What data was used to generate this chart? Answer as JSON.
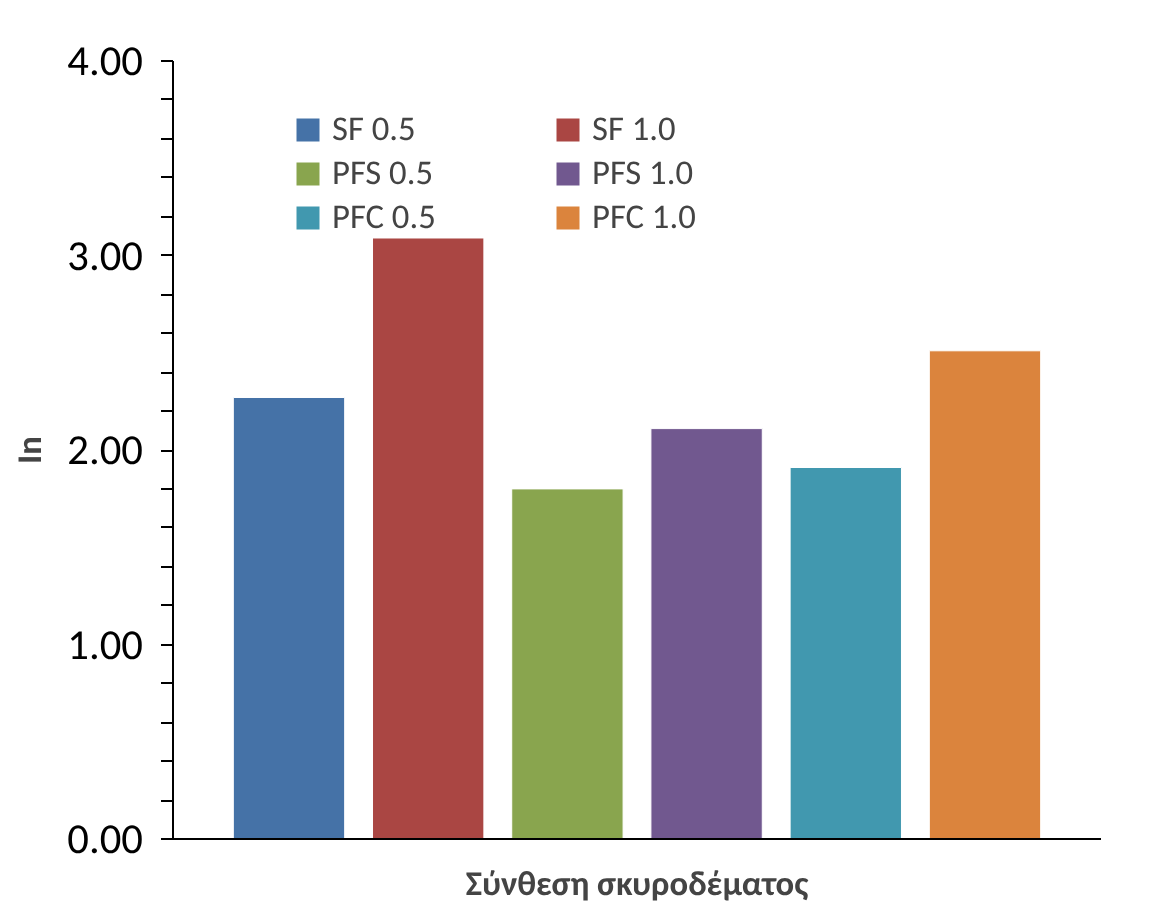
{
  "chart_data": {
    "type": "bar",
    "xlabel": "Σύνθεση σκυροδέματος",
    "ylabel": "In",
    "categories": [
      null
    ],
    "series": [
      {
        "name": "SF 0.5",
        "color": "#4572a7",
        "values": [
          2.27
        ]
      },
      {
        "name": "SF 1.0",
        "color": "#aa4643",
        "values": [
          3.09
        ]
      },
      {
        "name": "PFS 0.5",
        "color": "#89a54e",
        "values": [
          1.8
        ]
      },
      {
        "name": "PFS 1.0",
        "color": "#71588f",
        "values": [
          2.11
        ]
      },
      {
        "name": "PFC 0.5",
        "color": "#4198af",
        "values": [
          1.91
        ]
      },
      {
        "name": "PFC 1.0",
        "color": "#db843d",
        "values": [
          2.51
        ]
      }
    ],
    "ylim": [
      0,
      4
    ],
    "yticks": [
      {
        "value": 0,
        "label": "0.00"
      },
      {
        "value": 1,
        "label": "1.00"
      },
      {
        "value": 2,
        "label": "2.00"
      },
      {
        "value": 3,
        "label": "3.00"
      },
      {
        "value": 4,
        "label": "4.00"
      }
    ],
    "grid": false,
    "legend": "top"
  }
}
